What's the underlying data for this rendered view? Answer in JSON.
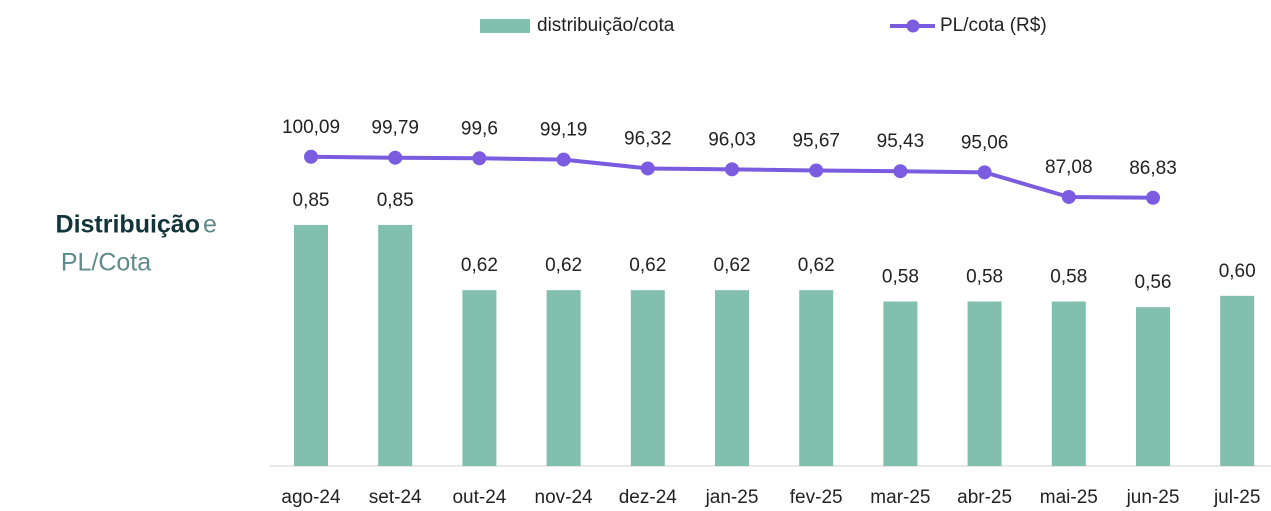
{
  "chart_data": {
    "type": "bar-line",
    "title_parts": [
      "Distribuição",
      "e",
      "PL/Cota"
    ],
    "categories": [
      "ago-24",
      "set-24",
      "out-24",
      "nov-24",
      "dez-24",
      "jan-25",
      "fev-25",
      "mar-25",
      "abr-25",
      "mai-25",
      "jun-25",
      "jul-25"
    ],
    "ylim": [
      0,
      1.22
    ],
    "y2lim": [
      0,
      112
    ],
    "series": [
      {
        "name": "distribuição/cota",
        "type": "bar",
        "color": "#82bfae",
        "values": [
          0.85,
          0.85,
          0.62,
          0.62,
          0.62,
          0.62,
          0.62,
          0.58,
          0.58,
          0.58,
          0.56,
          0.6
        ],
        "value_labels": [
          "0,85",
          "0,85",
          "0,62",
          "0,62",
          "0,62",
          "0,62",
          "0,62",
          "0,58",
          "0,58",
          "0,58",
          "0,56",
          "0,60"
        ]
      },
      {
        "name": "PL/cota (R$)",
        "type": "line",
        "axis": "y2",
        "color": "#7b5ce0",
        "values": [
          100.09,
          99.79,
          99.6,
          99.19,
          96.32,
          96.03,
          95.67,
          95.43,
          95.06,
          87.08,
          86.83,
          null
        ],
        "value_labels": [
          "100,09",
          "99,79",
          "99,6",
          "99,19",
          "96,32",
          "96,03",
          "95,67",
          "95,43",
          "95,06",
          "87,08",
          "86,83",
          null
        ]
      }
    ]
  }
}
